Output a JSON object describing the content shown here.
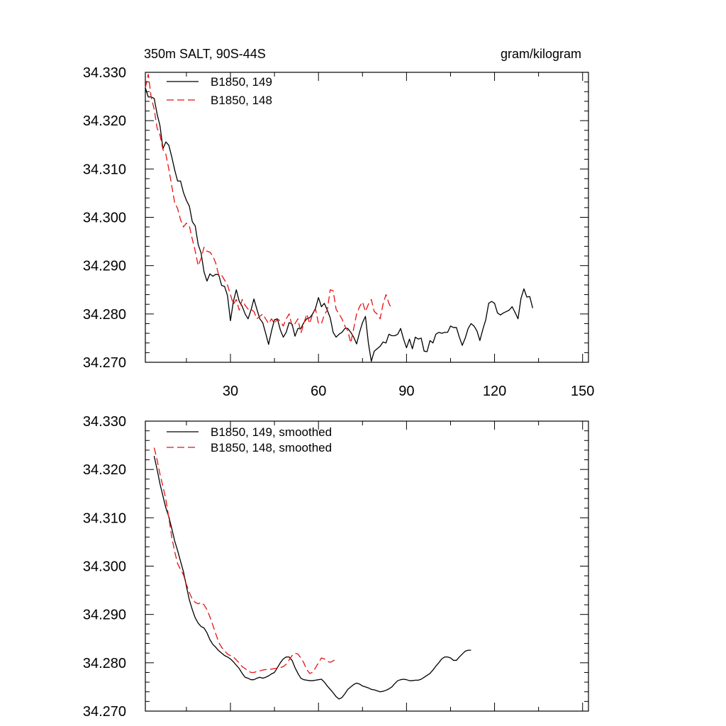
{
  "figure": {
    "title_left": "350m SALT, 90S-44S",
    "title_right": "gram/kilogram"
  },
  "chart_data": [
    {
      "type": "line",
      "title": "350m SALT, 90S-44S",
      "units": "gram/kilogram",
      "xlim": [
        1,
        152
      ],
      "ylim": [
        34.27,
        34.33
      ],
      "x_ticks": [
        30,
        60,
        90,
        120,
        150
      ],
      "x_ticklabels": [
        "30",
        "60",
        "90",
        "120",
        "150"
      ],
      "y_ticks": [
        34.27,
        34.28,
        34.29,
        34.3,
        34.31,
        34.32,
        34.33
      ],
      "y_ticklabels": [
        "34.270",
        "34.280",
        "34.290",
        "34.300",
        "34.310",
        "34.320",
        "34.330"
      ],
      "legend_position": "top-left",
      "series": [
        {
          "name": "B1850, 149",
          "color": "#000000",
          "dash": "solid",
          "x_start": 1,
          "values": [
            34.3268,
            34.3249,
            34.3249,
            34.3246,
            34.3214,
            34.3189,
            34.3142,
            34.3156,
            34.3149,
            34.3125,
            34.3098,
            34.3075,
            34.3075,
            34.3051,
            34.3035,
            34.3023,
            34.2991,
            34.2982,
            34.2944,
            34.2926,
            34.2887,
            34.2868,
            34.2883,
            34.2878,
            34.2882,
            34.2881,
            34.2859,
            34.2857,
            34.2838,
            34.2786,
            34.2826,
            34.285,
            34.2826,
            34.2816,
            34.28,
            34.279,
            34.2808,
            34.2831,
            34.281,
            34.279,
            34.2782,
            34.276,
            34.2737,
            34.2765,
            34.2788,
            34.279,
            34.2767,
            34.2752,
            34.2762,
            34.2782,
            34.2779,
            34.2754,
            34.277,
            34.277,
            34.2782,
            34.279,
            34.2792,
            34.28,
            34.2812,
            34.2834,
            34.2815,
            34.2822,
            34.2808,
            34.2792,
            34.2762,
            34.2752,
            34.2758,
            34.2762,
            34.277,
            34.277,
            34.2762,
            34.2752,
            34.2738,
            34.2762,
            34.2782,
            34.2795,
            34.274,
            34.2702,
            34.2723,
            34.2728,
            34.2733,
            34.2742,
            34.274,
            34.2758,
            34.2755,
            34.2755,
            34.2758,
            34.277,
            34.2748,
            34.273,
            34.2748,
            34.2728,
            34.2752,
            34.2748,
            34.275,
            34.2723,
            34.2722,
            34.2745,
            34.274,
            34.2758,
            34.2762,
            34.276,
            34.2762,
            34.2762,
            34.2775,
            34.2772,
            34.2772,
            34.2752,
            34.2735,
            34.275,
            34.277,
            34.278,
            34.2775,
            34.2765,
            34.2745,
            34.2768,
            34.2788,
            34.2822,
            34.2826,
            34.2822,
            34.2802,
            34.2798,
            34.2802,
            34.2805,
            34.2808,
            34.2815,
            34.2803,
            34.279,
            34.2832,
            34.2852,
            34.2835,
            34.2836,
            34.2812
          ]
        },
        {
          "name": "B1850, 148",
          "color": "#e81010",
          "dash": "dashed",
          "x_start": 1,
          "values": [
            34.3268,
            34.3296,
            34.3248,
            34.3224,
            34.3185,
            34.317,
            34.314,
            34.313,
            34.31,
            34.3065,
            34.303,
            34.3018,
            34.2995,
            34.298,
            34.2988,
            34.2982,
            34.2955,
            34.293,
            34.29,
            34.2915,
            34.2938,
            34.293,
            34.2928,
            34.292,
            34.2905,
            34.288,
            34.288,
            34.287,
            34.286,
            34.284,
            34.282,
            34.283,
            34.2808,
            34.283,
            34.2818,
            34.281,
            34.281,
            34.2805,
            34.279,
            34.2795,
            34.28,
            34.279,
            34.278,
            34.279,
            34.278,
            34.279,
            34.2785,
            34.2775,
            34.279,
            34.28,
            34.2775,
            34.278,
            34.279,
            34.276,
            34.278,
            34.28,
            34.278,
            34.28,
            34.281,
            34.278,
            34.278,
            34.2798,
            34.2808,
            34.285,
            34.2848,
            34.281,
            34.28,
            34.279,
            34.2775,
            34.2765,
            34.274,
            34.277,
            34.28,
            34.2815,
            34.2825,
            34.2805,
            34.282,
            34.283,
            34.2805,
            34.28,
            34.279,
            34.282,
            34.284,
            34.2822,
            34.281
          ]
        }
      ]
    },
    {
      "type": "line",
      "xlim": [
        1,
        152
      ],
      "ylim": [
        34.27,
        34.33
      ],
      "y_ticks": [
        34.27,
        34.28,
        34.29,
        34.3,
        34.31,
        34.32,
        34.33
      ],
      "y_ticklabels": [
        "34.270",
        "34.280",
        "34.290",
        "34.300",
        "34.310",
        "34.320",
        "34.330"
      ],
      "x_ticks": [
        30,
        60,
        90,
        120,
        150
      ],
      "legend_position": "top-left",
      "series": [
        {
          "name": "B1850, 149, smoothed",
          "color": "#000000",
          "dash": "solid",
          "x_start": 4,
          "values": [
            34.3228,
            34.32,
            34.317,
            34.3145,
            34.312,
            34.3102,
            34.3078,
            34.3052,
            34.3032,
            34.301,
            34.2988,
            34.2958,
            34.293,
            34.291,
            34.2893,
            34.2882,
            34.2875,
            34.2872,
            34.2862,
            34.2848,
            34.2838,
            34.2832,
            34.2825,
            34.282,
            34.2815,
            34.2812,
            34.2808,
            34.2802,
            34.2795,
            34.2788,
            34.2778,
            34.277,
            34.2768,
            34.2765,
            34.2765,
            34.2768,
            34.277,
            34.2768,
            34.277,
            34.2773,
            34.2777,
            34.278,
            34.279,
            34.28,
            34.2808,
            34.2812,
            34.2812,
            34.2805,
            34.279,
            34.2778,
            34.2768,
            34.2765,
            34.2764,
            34.2763,
            34.2763,
            34.2764,
            34.2765,
            34.2766,
            34.276,
            34.2752,
            34.2745,
            34.2738,
            34.273,
            34.2725,
            34.2728,
            34.2736,
            34.2745,
            34.275,
            34.2755,
            34.2758,
            34.2756,
            34.2752,
            34.275,
            34.2748,
            34.2745,
            34.2744,
            34.2742,
            34.274,
            34.2741,
            34.2743,
            34.2746,
            34.275,
            34.2757,
            34.2763,
            34.2765,
            34.2766,
            34.2765,
            34.2763,
            34.2763,
            34.2764,
            34.2764,
            34.2766,
            34.277,
            34.2774,
            34.2778,
            34.2785,
            34.2793,
            34.28,
            34.2808,
            34.2812,
            34.2812,
            34.281,
            34.2805,
            34.2805,
            34.2812,
            34.2818,
            34.2824,
            34.2826,
            34.2826
          ]
        },
        {
          "name": "B1850, 148, smoothed",
          "color": "#e81010",
          "dash": "dashed",
          "x_start": 4,
          "values": [
            34.3245,
            34.322,
            34.319,
            34.3165,
            34.3138,
            34.31,
            34.306,
            34.303,
            34.3005,
            34.2993,
            34.2982,
            34.2962,
            34.2945,
            34.2932,
            34.2925,
            34.2922,
            34.2925,
            34.292,
            34.291,
            34.2895,
            34.2878,
            34.286,
            34.2842,
            34.2832,
            34.2825,
            34.2818,
            34.2815,
            34.2812,
            34.2806,
            34.2799,
            34.2792,
            34.2788,
            34.2783,
            34.278,
            34.278,
            34.2782,
            34.2783,
            34.2785,
            34.2786,
            34.2786,
            34.2787,
            34.2788,
            34.2789,
            34.279,
            34.2792,
            34.2797,
            34.2806,
            34.2815,
            34.282,
            34.2818,
            34.281,
            34.28,
            34.2786,
            34.2778,
            34.278,
            34.279,
            34.28,
            34.281,
            34.2808,
            34.2803,
            34.2801,
            34.2804,
            34.2808
          ]
        }
      ]
    }
  ]
}
